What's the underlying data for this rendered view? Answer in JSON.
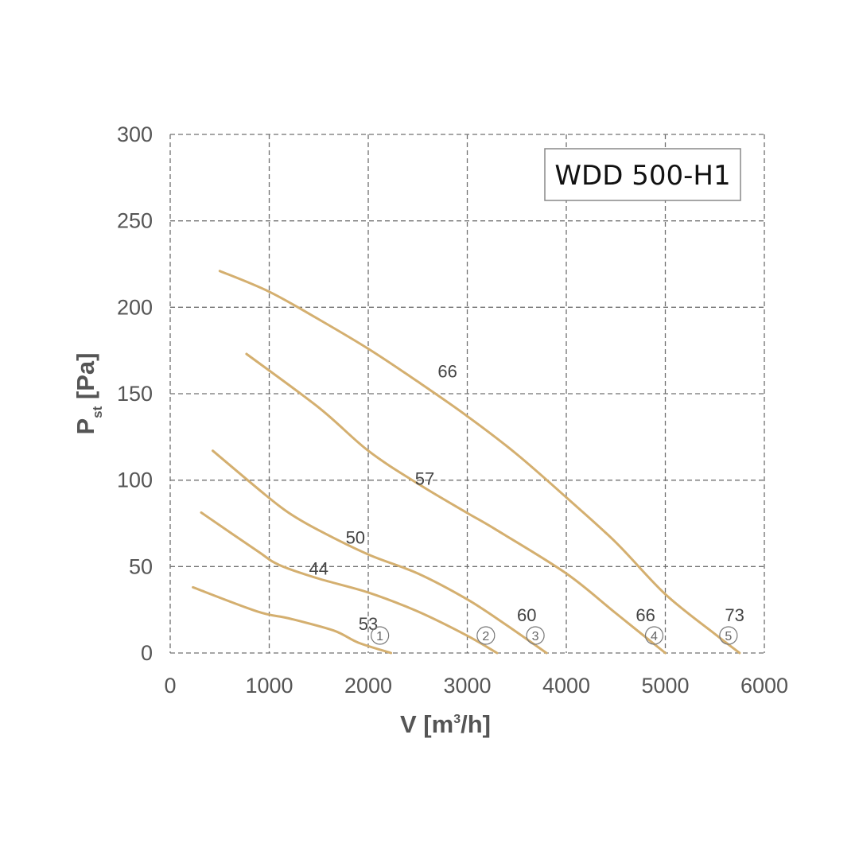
{
  "chart_data": {
    "type": "line",
    "title": "WDD 500-H1",
    "xlabel": {
      "main": "V [m",
      "sup": "3",
      "tail": "/h]"
    },
    "ylabel": {
      "main": "P",
      "sub": "st",
      "tail": " [Pa]"
    },
    "xlim": [
      0,
      6000
    ],
    "ylim": [
      0,
      300
    ],
    "xticks": [
      0,
      1000,
      2000,
      3000,
      4000,
      5000,
      6000
    ],
    "yticks": [
      0,
      50,
      100,
      150,
      200,
      250,
      300
    ],
    "grid": true,
    "line_color": "#D4AF6F",
    "series": [
      {
        "marker": "1",
        "points": [
          [
            230,
            38
          ],
          [
            880,
            24
          ],
          [
            1200,
            20
          ],
          [
            1650,
            13
          ],
          [
            1900,
            6
          ],
          [
            2230,
            0
          ]
        ],
        "labels": [
          {
            "text": "53",
            "x": 2000,
            "y": 17
          }
        ]
      },
      {
        "marker": "2",
        "points": [
          [
            320,
            81
          ],
          [
            370,
            79
          ],
          [
            880,
            59
          ],
          [
            1100,
            51
          ],
          [
            1500,
            43
          ],
          [
            2000,
            35
          ],
          [
            2500,
            24
          ],
          [
            3000,
            10
          ],
          [
            3300,
            0
          ]
        ],
        "labels": [
          {
            "text": "44",
            "x": 1500,
            "y": 49
          },
          {
            "text": "60",
            "x": 3600,
            "y": 22
          }
        ]
      },
      {
        "marker": "3",
        "points": [
          [
            430,
            117
          ],
          [
            950,
            92
          ],
          [
            1200,
            81
          ],
          [
            1500,
            71
          ],
          [
            2000,
            57
          ],
          [
            2500,
            46
          ],
          [
            3000,
            31
          ],
          [
            3400,
            16
          ],
          [
            3800,
            0
          ]
        ],
        "labels": [
          {
            "text": "50",
            "x": 1870,
            "y": 67
          }
        ]
      },
      {
        "marker": "4",
        "points": [
          [
            770,
            173
          ],
          [
            1500,
            142
          ],
          [
            2000,
            117
          ],
          [
            2500,
            98
          ],
          [
            3000,
            81
          ],
          [
            3300,
            71
          ],
          [
            4000,
            46
          ],
          [
            4500,
            23
          ],
          [
            5000,
            0
          ]
        ],
        "labels": [
          {
            "text": "57",
            "x": 2570,
            "y": 101
          },
          {
            "text": "66",
            "x": 4800,
            "y": 22
          }
        ]
      },
      {
        "marker": "5",
        "points": [
          [
            500,
            221
          ],
          [
            1000,
            209
          ],
          [
            1500,
            193
          ],
          [
            2000,
            176
          ],
          [
            2500,
            157
          ],
          [
            3000,
            137
          ],
          [
            3500,
            115
          ],
          [
            4000,
            90
          ],
          [
            4500,
            64
          ],
          [
            5000,
            34
          ],
          [
            5500,
            11
          ],
          [
            5750,
            0
          ]
        ],
        "labels": [
          {
            "text": "66",
            "x": 2800,
            "y": 163
          },
          {
            "text": "73",
            "x": 5700,
            "y": 22
          }
        ]
      }
    ]
  }
}
